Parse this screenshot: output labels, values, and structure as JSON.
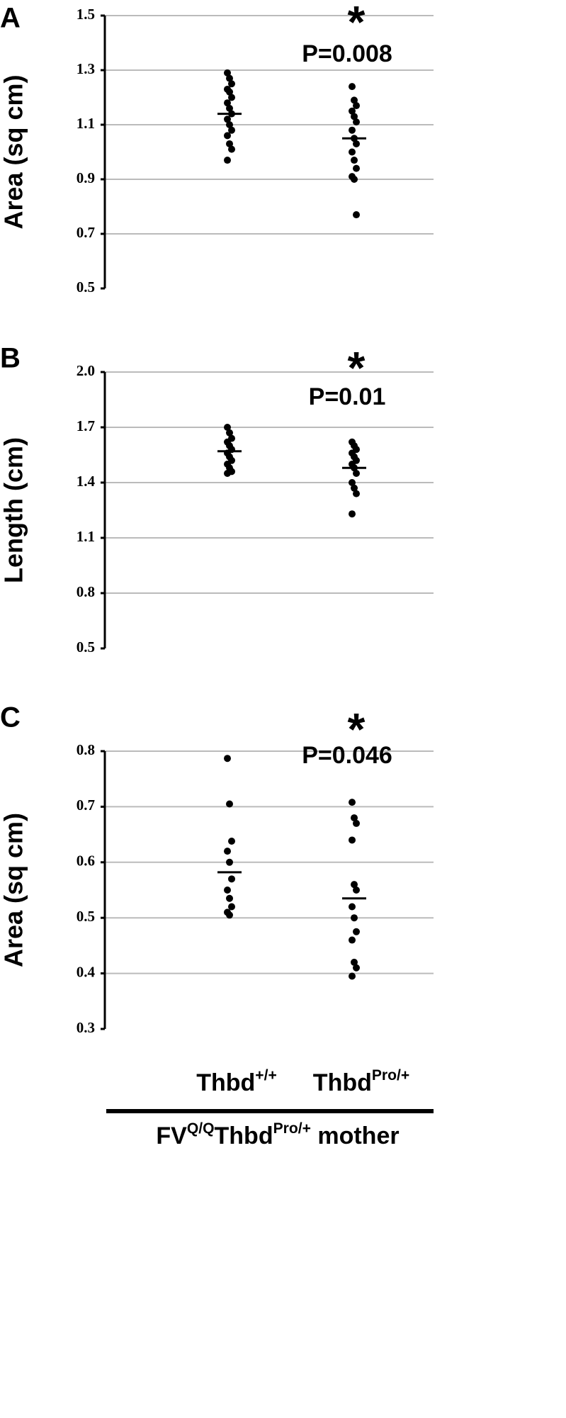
{
  "chart_data": [
    {
      "type": "strip",
      "panel": "A",
      "y_label": "Area (sq cm)",
      "annotation": "*",
      "p_label": "P=0.008",
      "ylim": [
        0.5,
        1.5
      ],
      "yticks": [
        0.5,
        0.7,
        0.9,
        1.1,
        1.3,
        1.5
      ],
      "grid": true,
      "color": "#000000",
      "series": [
        {
          "values": [
            1.29,
            1.27,
            1.25,
            1.23,
            1.22,
            1.2,
            1.18,
            1.16,
            1.14,
            1.12,
            1.1,
            1.08,
            1.06,
            1.03,
            1.01,
            0.97
          ],
          "mean": 1.14
        },
        {
          "values": [
            1.24,
            1.19,
            1.17,
            1.15,
            1.13,
            1.11,
            1.08,
            1.05,
            1.03,
            1.0,
            0.97,
            0.94,
            0.91,
            0.9,
            0.77
          ],
          "mean": 1.05
        }
      ]
    },
    {
      "type": "strip",
      "panel": "B",
      "y_label": "Length (cm)",
      "annotation": "*",
      "p_label": "P=0.01",
      "ylim": [
        0.5,
        2.0
      ],
      "yticks": [
        0.5,
        0.8,
        1.1,
        1.4,
        1.7,
        {
          "value": 2.0,
          "label": "2.0"
        }
      ],
      "grid": true,
      "color": "#000000",
      "series": [
        {
          "values": [
            1.7,
            1.67,
            1.64,
            1.62,
            1.6,
            1.58,
            1.56,
            1.54,
            1.52,
            1.5,
            1.48,
            1.46,
            1.45
          ],
          "mean": 1.57
        },
        {
          "values": [
            1.62,
            1.6,
            1.58,
            1.56,
            1.54,
            1.52,
            1.5,
            1.48,
            1.45,
            1.4,
            1.37,
            1.34,
            1.23
          ],
          "mean": 1.48
        }
      ]
    },
    {
      "type": "strip",
      "panel": "C",
      "y_label": "Area (sq cm)",
      "annotation": "*",
      "p_label": "P=0.046",
      "ylim": [
        0.3,
        0.8
      ],
      "yticks": [
        0.3,
        0.4,
        0.5,
        0.6,
        0.7,
        0.8
      ],
      "grid": true,
      "color": "#000000",
      "categories": [
        [
          {
            "text": "Thbd"
          },
          {
            "text": "+/+",
            "sup": true
          }
        ],
        [
          {
            "text": "Thbd"
          },
          {
            "text": "Pro/+",
            "sup": true
          }
        ]
      ],
      "series": [
        {
          "values": [
            0.787,
            0.705,
            0.638,
            0.62,
            0.6,
            0.57,
            0.55,
            0.535,
            0.52,
            0.51,
            0.505
          ],
          "mean": 0.582
        },
        {
          "values": [
            0.708,
            0.68,
            0.67,
            0.64,
            0.56,
            0.55,
            0.52,
            0.5,
            0.475,
            0.46,
            0.42,
            0.41,
            0.395
          ],
          "mean": 0.535
        }
      ]
    }
  ],
  "footer": [
    {
      "text": "FV"
    },
    {
      "text": "Q/Q",
      "sup": true
    },
    {
      "text": "Thbd"
    },
    {
      "text": "Pro/+",
      "sup": true
    },
    {
      "text": " mother"
    }
  ]
}
